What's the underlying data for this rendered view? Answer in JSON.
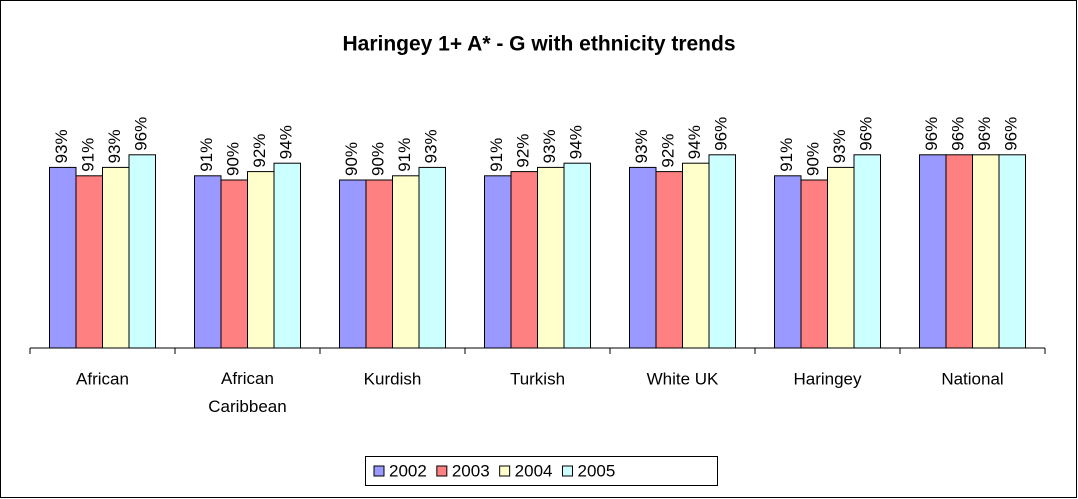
{
  "chart_data": {
    "type": "bar",
    "title": "Haringey 1+ A* - G with ethnicity trends",
    "categories": [
      "African",
      "African Caribbean",
      "Kurdish",
      "Turkish",
      "White UK",
      "Haringey",
      "National"
    ],
    "series": [
      {
        "name": "2002",
        "color": "#9999ff",
        "values": [
          93,
          91,
          90,
          91,
          93,
          91,
          96
        ],
        "value_labels": [
          "93%",
          "91%",
          "90%",
          "91%",
          "93%",
          "91%",
          "96%"
        ]
      },
      {
        "name": "2003",
        "color": "#ff8080",
        "values": [
          91,
          90,
          90,
          92,
          92,
          90,
          96
        ],
        "value_labels": [
          "91%",
          "90%",
          "90%",
          "92%",
          "92%",
          "90%",
          "96%"
        ]
      },
      {
        "name": "2004",
        "color": "#ffffcc",
        "values": [
          93,
          92,
          91,
          93,
          94,
          93,
          96
        ],
        "value_labels": [
          "93%",
          "92%",
          "91%",
          "93%",
          "94%",
          "93%",
          "96%"
        ]
      },
      {
        "name": "2005",
        "color": "#ccffff",
        "values": [
          96,
          94,
          93,
          94,
          96,
          96,
          96
        ],
        "value_labels": [
          "96%",
          "94%",
          "93%",
          "94%",
          "96%",
          "96%",
          "96%"
        ]
      }
    ],
    "ylim": [
      50,
      100
    ],
    "legend": "bottom"
  }
}
